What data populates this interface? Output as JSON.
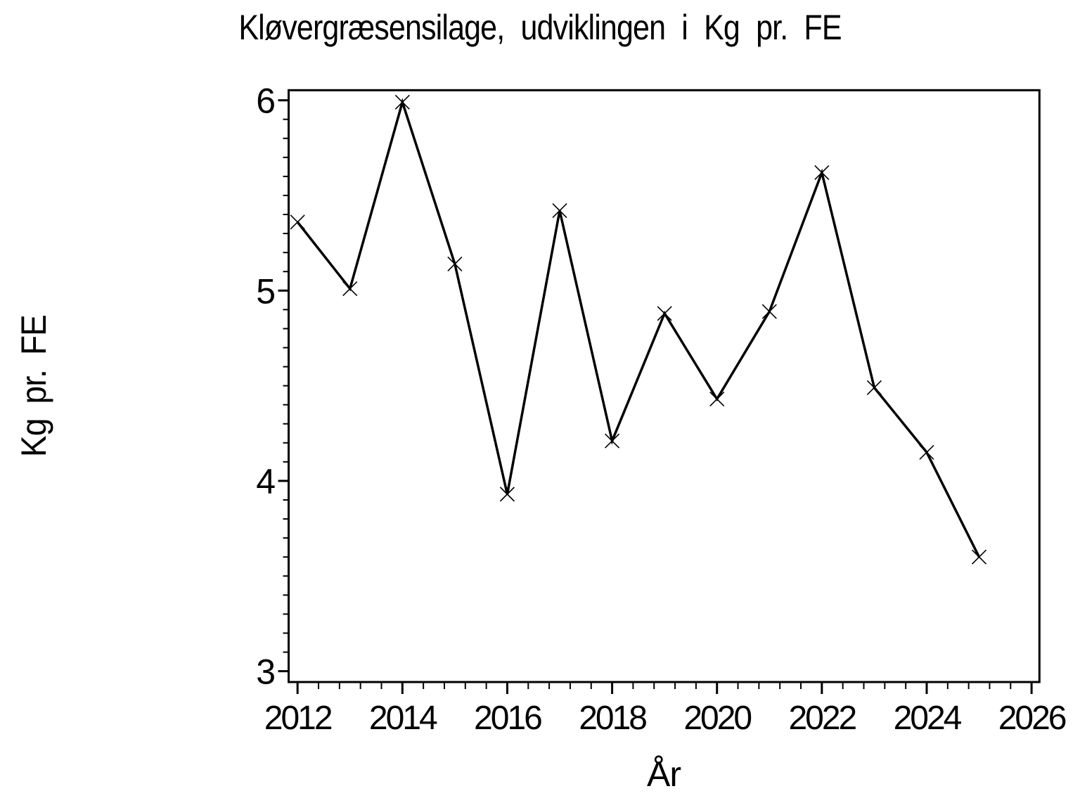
{
  "page": {
    "background_color": "#ffffff",
    "foreground_color": "#000000"
  },
  "chart_data": {
    "type": "line",
    "title": "Kløvergræsensilage, udviklingen i Kg pr. FE",
    "xlabel": "År",
    "ylabel": "Kg pr. FE",
    "legend": "none",
    "grid": false,
    "marker": "x",
    "line_color": "#000000",
    "marker_color": "#000000",
    "x": [
      2012,
      2013,
      2014,
      2015,
      2016,
      2017,
      2018,
      2019,
      2020,
      2021,
      2022,
      2023,
      2024,
      2025
    ],
    "values": [
      5.36,
      5.01,
      5.99,
      5.14,
      3.93,
      5.42,
      4.21,
      4.88,
      4.43,
      4.89,
      5.62,
      4.49,
      4.15,
      3.6
    ],
    "series": [
      {
        "name": "Kg pr. FE",
        "values": [
          5.36,
          5.01,
          5.99,
          5.14,
          3.93,
          5.42,
          4.21,
          4.88,
          4.43,
          4.89,
          5.62,
          4.49,
          4.15,
          3.6
        ]
      }
    ],
    "xlim": [
      2011.83,
      2026.15
    ],
    "ylim": [
      2.943,
      6.053
    ],
    "x_major_ticks": [
      2012,
      2014,
      2016,
      2018,
      2020,
      2022,
      2024,
      2026
    ],
    "x_minor_per_major": 4,
    "y_major_ticks": [
      3,
      4,
      5,
      6
    ],
    "y_minor_per_major": 9
  }
}
